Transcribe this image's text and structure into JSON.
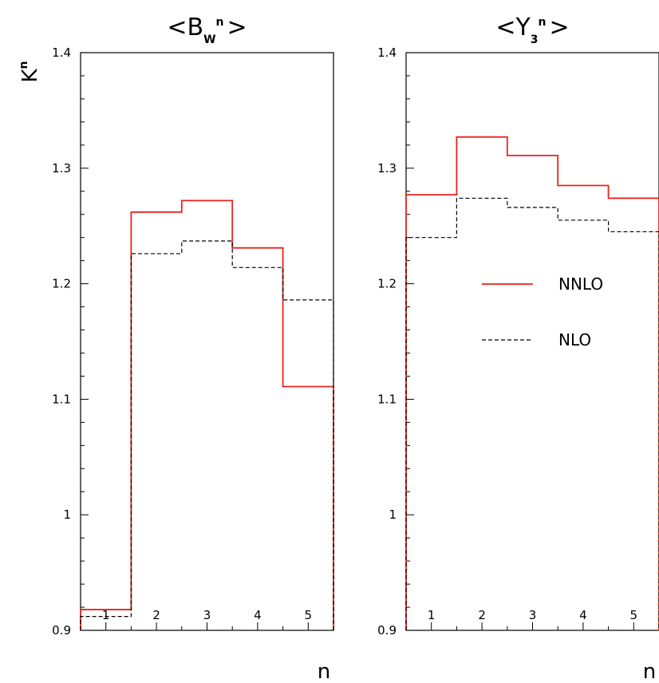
{
  "colors": {
    "nnlo": "#e8241c",
    "nlo": "#000000",
    "frame": "#000000"
  },
  "chart_data": [
    {
      "type": "line",
      "step": true,
      "title": {
        "prefix": "<B",
        "subscript": "W",
        "superscript": "n",
        "suffix": ">"
      },
      "ylabel": {
        "base": "K",
        "superscript": "n"
      },
      "xlabel": "n",
      "xlim": [
        0.5,
        5.5
      ],
      "ylim": [
        0.9,
        1.4
      ],
      "x": [
        1,
        2,
        3,
        4,
        5
      ],
      "xticklabels": [
        "1",
        "2",
        "3",
        "4",
        "5"
      ],
      "yticks": [
        0.9,
        1,
        1.1,
        1.2,
        1.3,
        1.4
      ],
      "yticklabels": [
        "0.9",
        "1",
        "1.1",
        "1.2",
        "1.3",
        "1.4"
      ],
      "series": [
        {
          "name": "NNLO",
          "values": [
            0.918,
            1.262,
            1.272,
            1.231,
            1.111
          ]
        },
        {
          "name": "NLO",
          "values": [
            0.912,
            1.226,
            1.237,
            1.214,
            1.186
          ]
        }
      ]
    },
    {
      "type": "line",
      "step": true,
      "title": {
        "prefix": "<Y",
        "subscript": "3",
        "superscript": "n",
        "suffix": ">"
      },
      "xlabel": "n",
      "xlim": [
        0.5,
        5.5
      ],
      "ylim": [
        0.9,
        1.4
      ],
      "x": [
        1,
        2,
        3,
        4,
        5
      ],
      "xticklabels": [
        "1",
        "2",
        "3",
        "4",
        "5"
      ],
      "yticks": [
        0.9,
        1,
        1.1,
        1.2,
        1.3,
        1.4
      ],
      "yticklabels": [
        "0.9",
        "1",
        "1.1",
        "1.2",
        "1.3",
        "1.4"
      ],
      "legend": {
        "placement": "center",
        "entries": [
          "NNLO",
          "NLO"
        ]
      },
      "series": [
        {
          "name": "NNLO",
          "values": [
            1.277,
            1.327,
            1.311,
            1.285,
            1.274
          ]
        },
        {
          "name": "NLO",
          "values": [
            1.24,
            1.274,
            1.266,
            1.255,
            1.245
          ]
        }
      ]
    }
  ]
}
